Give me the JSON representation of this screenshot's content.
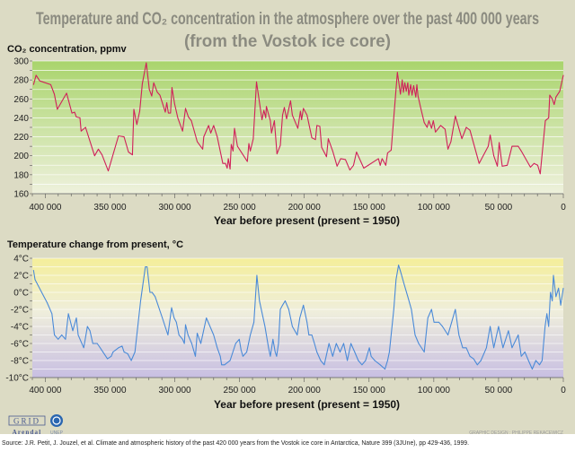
{
  "title_line1": "Temperature and CO₂ concentration in the atmosphere over the past 400 000 years",
  "title_line2": "(from the Vostok ice core)",
  "credit": "GRAPHIC DESIGN : PHILIPPE REKACEWICZ",
  "source": "Source: J.R. Petit, J. Jouzel, et al. Climate and atmospheric history of the past 420 000 years from the Vostok ice core in Antarctica, Nature 399 (3JUne), pp 429-436, 1999.",
  "logos": {
    "grid": "GRID",
    "arendal": "Arendal",
    "unep": "UNEP"
  },
  "chart_data": [
    {
      "type": "line",
      "ylabel": "CO₂ concentration, ppmv",
      "xlabel": "Year before present (present = 1950)",
      "xlim": [
        410000,
        0
      ],
      "ylim": [
        160,
        300
      ],
      "xticks": [
        400000,
        350000,
        300000,
        250000,
        200000,
        150000,
        100000,
        50000,
        0
      ],
      "xtick_labels": [
        "400 000",
        "350 000",
        "300 000",
        "250 000",
        "200 000",
        "150 000",
        "100 000",
        "50 000",
        "0"
      ],
      "yticks": [
        160,
        180,
        200,
        220,
        240,
        260,
        280,
        300
      ],
      "ytick_labels": [
        "160",
        "180",
        "200",
        "220",
        "240",
        "260",
        "280",
        "300"
      ],
      "grid": true,
      "line_color": "#d0205a",
      "background": [
        "#a9d46c",
        "#eef1dc"
      ],
      "points": [
        [
          409100,
          275
        ],
        [
          407100,
          285
        ],
        [
          404300,
          279
        ],
        [
          395800,
          275
        ],
        [
          393000,
          265
        ],
        [
          390700,
          249
        ],
        [
          383600,
          266
        ],
        [
          379400,
          245
        ],
        [
          377400,
          246
        ],
        [
          376000,
          241
        ],
        [
          373200,
          240
        ],
        [
          372300,
          226
        ],
        [
          368900,
          230
        ],
        [
          361900,
          200
        ],
        [
          359000,
          207
        ],
        [
          356200,
          201
        ],
        [
          351400,
          184
        ],
        [
          343500,
          221
        ],
        [
          339200,
          220
        ],
        [
          335800,
          204
        ],
        [
          332700,
          201
        ],
        [
          331600,
          249
        ],
        [
          329300,
          233
        ],
        [
          327100,
          247
        ],
        [
          325100,
          276
        ],
        [
          322000,
          298
        ],
        [
          319700,
          270
        ],
        [
          317800,
          263
        ],
        [
          316300,
          277
        ],
        [
          313500,
          267
        ],
        [
          311500,
          264
        ],
        [
          307300,
          246
        ],
        [
          306200,
          256
        ],
        [
          305000,
          245
        ],
        [
          303300,
          245
        ],
        [
          302200,
          272
        ],
        [
          300200,
          255
        ],
        [
          297700,
          240
        ],
        [
          294000,
          226
        ],
        [
          291700,
          250
        ],
        [
          289500,
          241
        ],
        [
          287200,
          237
        ],
        [
          282700,
          215
        ],
        [
          278500,
          207
        ],
        [
          277600,
          220
        ],
        [
          273900,
          232
        ],
        [
          272200,
          224
        ],
        [
          270000,
          232
        ],
        [
          267200,
          220
        ],
        [
          262900,
          192
        ],
        [
          260900,
          192
        ],
        [
          259500,
          187
        ],
        [
          258700,
          197
        ],
        [
          257300,
          186
        ],
        [
          256400,
          212
        ],
        [
          255000,
          205
        ],
        [
          253900,
          229
        ],
        [
          251600,
          210
        ],
        [
          244000,
          194
        ],
        [
          242800,
          213
        ],
        [
          241700,
          205
        ],
        [
          239400,
          218
        ],
        [
          236900,
          278
        ],
        [
          232700,
          238
        ],
        [
          231200,
          248
        ],
        [
          229800,
          240
        ],
        [
          229300,
          252
        ],
        [
          226200,
          237
        ],
        [
          225300,
          224
        ],
        [
          223100,
          237
        ],
        [
          221100,
          202
        ],
        [
          218500,
          211
        ],
        [
          216800,
          243
        ],
        [
          215400,
          251
        ],
        [
          213700,
          239
        ],
        [
          210600,
          258
        ],
        [
          209200,
          243
        ],
        [
          205000,
          229
        ],
        [
          203000,
          247
        ],
        [
          202100,
          238
        ],
        [
          200700,
          250
        ],
        [
          197900,
          243
        ],
        [
          194200,
          219
        ],
        [
          191400,
          217
        ],
        [
          190300,
          232
        ],
        [
          188000,
          231
        ],
        [
          186600,
          209
        ],
        [
          182900,
          199
        ],
        [
          181500,
          218
        ],
        [
          178100,
          205
        ],
        [
          174700,
          189
        ],
        [
          171900,
          197
        ],
        [
          168200,
          196
        ],
        [
          164800,
          185
        ],
        [
          162000,
          190
        ],
        [
          159700,
          204
        ],
        [
          154100,
          187
        ],
        [
          142800,
          197
        ],
        [
          141400,
          190
        ],
        [
          139900,
          197
        ],
        [
          137100,
          190
        ],
        [
          135700,
          203
        ],
        [
          132900,
          206
        ],
        [
          128100,
          288
        ],
        [
          125800,
          265
        ],
        [
          124400,
          280
        ],
        [
          123500,
          267
        ],
        [
          122400,
          277
        ],
        [
          121300,
          268
        ],
        [
          120100,
          277
        ],
        [
          119300,
          264
        ],
        [
          117900,
          275
        ],
        [
          116800,
          264
        ],
        [
          115600,
          274
        ],
        [
          113900,
          262
        ],
        [
          113100,
          275
        ],
        [
          112200,
          263
        ],
        [
          110000,
          250
        ],
        [
          107400,
          235
        ],
        [
          105200,
          230
        ],
        [
          103800,
          237
        ],
        [
          101800,
          229
        ],
        [
          100400,
          237
        ],
        [
          98700,
          225
        ],
        [
          94700,
          232
        ],
        [
          91300,
          228
        ],
        [
          89100,
          207
        ],
        [
          86800,
          215
        ],
        [
          83400,
          242
        ],
        [
          78300,
          218
        ],
        [
          74900,
          230
        ],
        [
          72100,
          227
        ],
        [
          65000,
          192
        ],
        [
          58000,
          210
        ],
        [
          56500,
          222
        ],
        [
          53700,
          200
        ],
        [
          50900,
          189
        ],
        [
          49500,
          214
        ],
        [
          47200,
          189
        ],
        [
          43300,
          190
        ],
        [
          39600,
          210
        ],
        [
          34800,
          210
        ],
        [
          32500,
          205
        ],
        [
          25400,
          188
        ],
        [
          22600,
          192
        ],
        [
          19800,
          190
        ],
        [
          17800,
          181
        ],
        [
          13900,
          237
        ],
        [
          11300,
          240
        ],
        [
          10500,
          264
        ],
        [
          8500,
          260
        ],
        [
          7100,
          254
        ],
        [
          5700,
          262
        ],
        [
          2800,
          268
        ],
        [
          0,
          285
        ]
      ]
    },
    {
      "type": "line",
      "ylabel": "Temperature change from present, °C",
      "xlabel": "Year before present (present = 1950)",
      "xlim": [
        410000,
        0
      ],
      "ylim": [
        -10,
        4
      ],
      "xticks": [
        400000,
        350000,
        300000,
        250000,
        200000,
        150000,
        100000,
        50000,
        0
      ],
      "xtick_labels": [
        "400 000",
        "350 000",
        "300 000",
        "250 000",
        "200 000",
        "150 000",
        "100 000",
        "50 000",
        "0"
      ],
      "yticks": [
        -10,
        -8,
        -6,
        -4,
        -2,
        0,
        2,
        4
      ],
      "ytick_labels": [
        "-10°C",
        "-8°C",
        "-6°C",
        "-4°C",
        "-2°C",
        "0°C",
        "2°C",
        "4°C"
      ],
      "grid": true,
      "line_color": "#4a8ad8",
      "background": [
        "#f4ee9a",
        "#efeedc",
        "#c8bfe2"
      ],
      "points": [
        [
          409100,
          2.6
        ],
        [
          407900,
          1.5
        ],
        [
          402800,
          0
        ],
        [
          398600,
          -1.2
        ],
        [
          394900,
          -2.5
        ],
        [
          392900,
          -5
        ],
        [
          390100,
          -5.5
        ],
        [
          387300,
          -5
        ],
        [
          384400,
          -5.5
        ],
        [
          382200,
          -2.5
        ],
        [
          378800,
          -4.5
        ],
        [
          376000,
          -3
        ],
        [
          374600,
          -5
        ],
        [
          370300,
          -6.5
        ],
        [
          367500,
          -4
        ],
        [
          365500,
          -4.5
        ],
        [
          363300,
          -6
        ],
        [
          359900,
          -6
        ],
        [
          357600,
          -6.5
        ],
        [
          352000,
          -7.8
        ],
        [
          349100,
          -7.5
        ],
        [
          347700,
          -7
        ],
        [
          343500,
          -6.5
        ],
        [
          340700,
          -6.3
        ],
        [
          339200,
          -7
        ],
        [
          336400,
          -7.2
        ],
        [
          333600,
          -8
        ],
        [
          330800,
          -7
        ],
        [
          326400,
          -1
        ],
        [
          322700,
          3
        ],
        [
          321400,
          3
        ],
        [
          320300,
          1.5
        ],
        [
          319200,
          0
        ],
        [
          317500,
          0
        ],
        [
          315200,
          -0.5
        ],
        [
          309600,
          -3
        ],
        [
          305300,
          -5
        ],
        [
          302500,
          -1.8
        ],
        [
          300500,
          -3
        ],
        [
          298800,
          -3.5
        ],
        [
          296800,
          -5
        ],
        [
          294000,
          -5.5
        ],
        [
          292600,
          -6
        ],
        [
          291700,
          -3.8
        ],
        [
          289800,
          -5
        ],
        [
          286900,
          -6
        ],
        [
          284100,
          -7.5
        ],
        [
          282700,
          -4.8
        ],
        [
          279900,
          -6
        ],
        [
          275600,
          -3
        ],
        [
          270000,
          -5
        ],
        [
          267200,
          -6.5
        ],
        [
          264900,
          -7.5
        ],
        [
          263800,
          -8.5
        ],
        [
          261600,
          -8.5
        ],
        [
          257300,
          -8
        ],
        [
          253000,
          -6
        ],
        [
          250200,
          -5.5
        ],
        [
          248800,
          -6.8
        ],
        [
          247400,
          -7.5
        ],
        [
          244500,
          -7
        ],
        [
          241700,
          -5
        ],
        [
          238900,
          -3.5
        ],
        [
          236600,
          2
        ],
        [
          234600,
          -1
        ],
        [
          230400,
          -4
        ],
        [
          227600,
          -6.5
        ],
        [
          226200,
          -7.5
        ],
        [
          224200,
          -5.5
        ],
        [
          222500,
          -7
        ],
        [
          221400,
          -7.5
        ],
        [
          219900,
          -6
        ],
        [
          218500,
          -2
        ],
        [
          216800,
          -1.5
        ],
        [
          214800,
          -1
        ],
        [
          212000,
          -2
        ],
        [
          209200,
          -4
        ],
        [
          205500,
          -5
        ],
        [
          203500,
          -3
        ],
        [
          200700,
          -1.5
        ],
        [
          197900,
          -3.5
        ],
        [
          196500,
          -5
        ],
        [
          194200,
          -5
        ],
        [
          192200,
          -6
        ],
        [
          190300,
          -7
        ],
        [
          187400,
          -8
        ],
        [
          184600,
          -8.5
        ],
        [
          180900,
          -6
        ],
        [
          178100,
          -7.5
        ],
        [
          175300,
          -6
        ],
        [
          172400,
          -7
        ],
        [
          169600,
          -6
        ],
        [
          166800,
          -8
        ],
        [
          164000,
          -6
        ],
        [
          161100,
          -7
        ],
        [
          158300,
          -8
        ],
        [
          155500,
          -8.5
        ],
        [
          152700,
          -8
        ],
        [
          149800,
          -6.5
        ],
        [
          148400,
          -7.5
        ],
        [
          145600,
          -8
        ],
        [
          141400,
          -8.5
        ],
        [
          137700,
          -9
        ],
        [
          135700,
          -8
        ],
        [
          134300,
          -7
        ],
        [
          130900,
          -2
        ],
        [
          129200,
          1.5
        ],
        [
          127200,
          3.2
        ],
        [
          125800,
          2.5
        ],
        [
          123000,
          1
        ],
        [
          120100,
          -0.5
        ],
        [
          117300,
          -2
        ],
        [
          114500,
          -5
        ],
        [
          111700,
          -6
        ],
        [
          107400,
          -7
        ],
        [
          106000,
          -5
        ],
        [
          104600,
          -3
        ],
        [
          101800,
          -2
        ],
        [
          99800,
          -3.5
        ],
        [
          96100,
          -3.5
        ],
        [
          93300,
          -4
        ],
        [
          89100,
          -5
        ],
        [
          86200,
          -3.5
        ],
        [
          83400,
          -2
        ],
        [
          80600,
          -5
        ],
        [
          77700,
          -6.5
        ],
        [
          74900,
          -6.5
        ],
        [
          72100,
          -7.5
        ],
        [
          69300,
          -7.8
        ],
        [
          66400,
          -8.5
        ],
        [
          63600,
          -8
        ],
        [
          59400,
          -6.5
        ],
        [
          56500,
          -4
        ],
        [
          53700,
          -6.5
        ],
        [
          50000,
          -4
        ],
        [
          46600,
          -6.5
        ],
        [
          42400,
          -4.5
        ],
        [
          39600,
          -6.5
        ],
        [
          34800,
          -5
        ],
        [
          32500,
          -7.5
        ],
        [
          29700,
          -7
        ],
        [
          26900,
          -8
        ],
        [
          24000,
          -9
        ],
        [
          21200,
          -8
        ],
        [
          18400,
          -8.5
        ],
        [
          16400,
          -8
        ],
        [
          14100,
          -4
        ],
        [
          12700,
          -2.5
        ],
        [
          11300,
          -4
        ],
        [
          9900,
          0
        ],
        [
          8500,
          -1
        ],
        [
          7600,
          2
        ],
        [
          5700,
          -0.5
        ],
        [
          3700,
          0.5
        ],
        [
          2000,
          -1.5
        ],
        [
          0,
          0.5
        ]
      ]
    }
  ]
}
